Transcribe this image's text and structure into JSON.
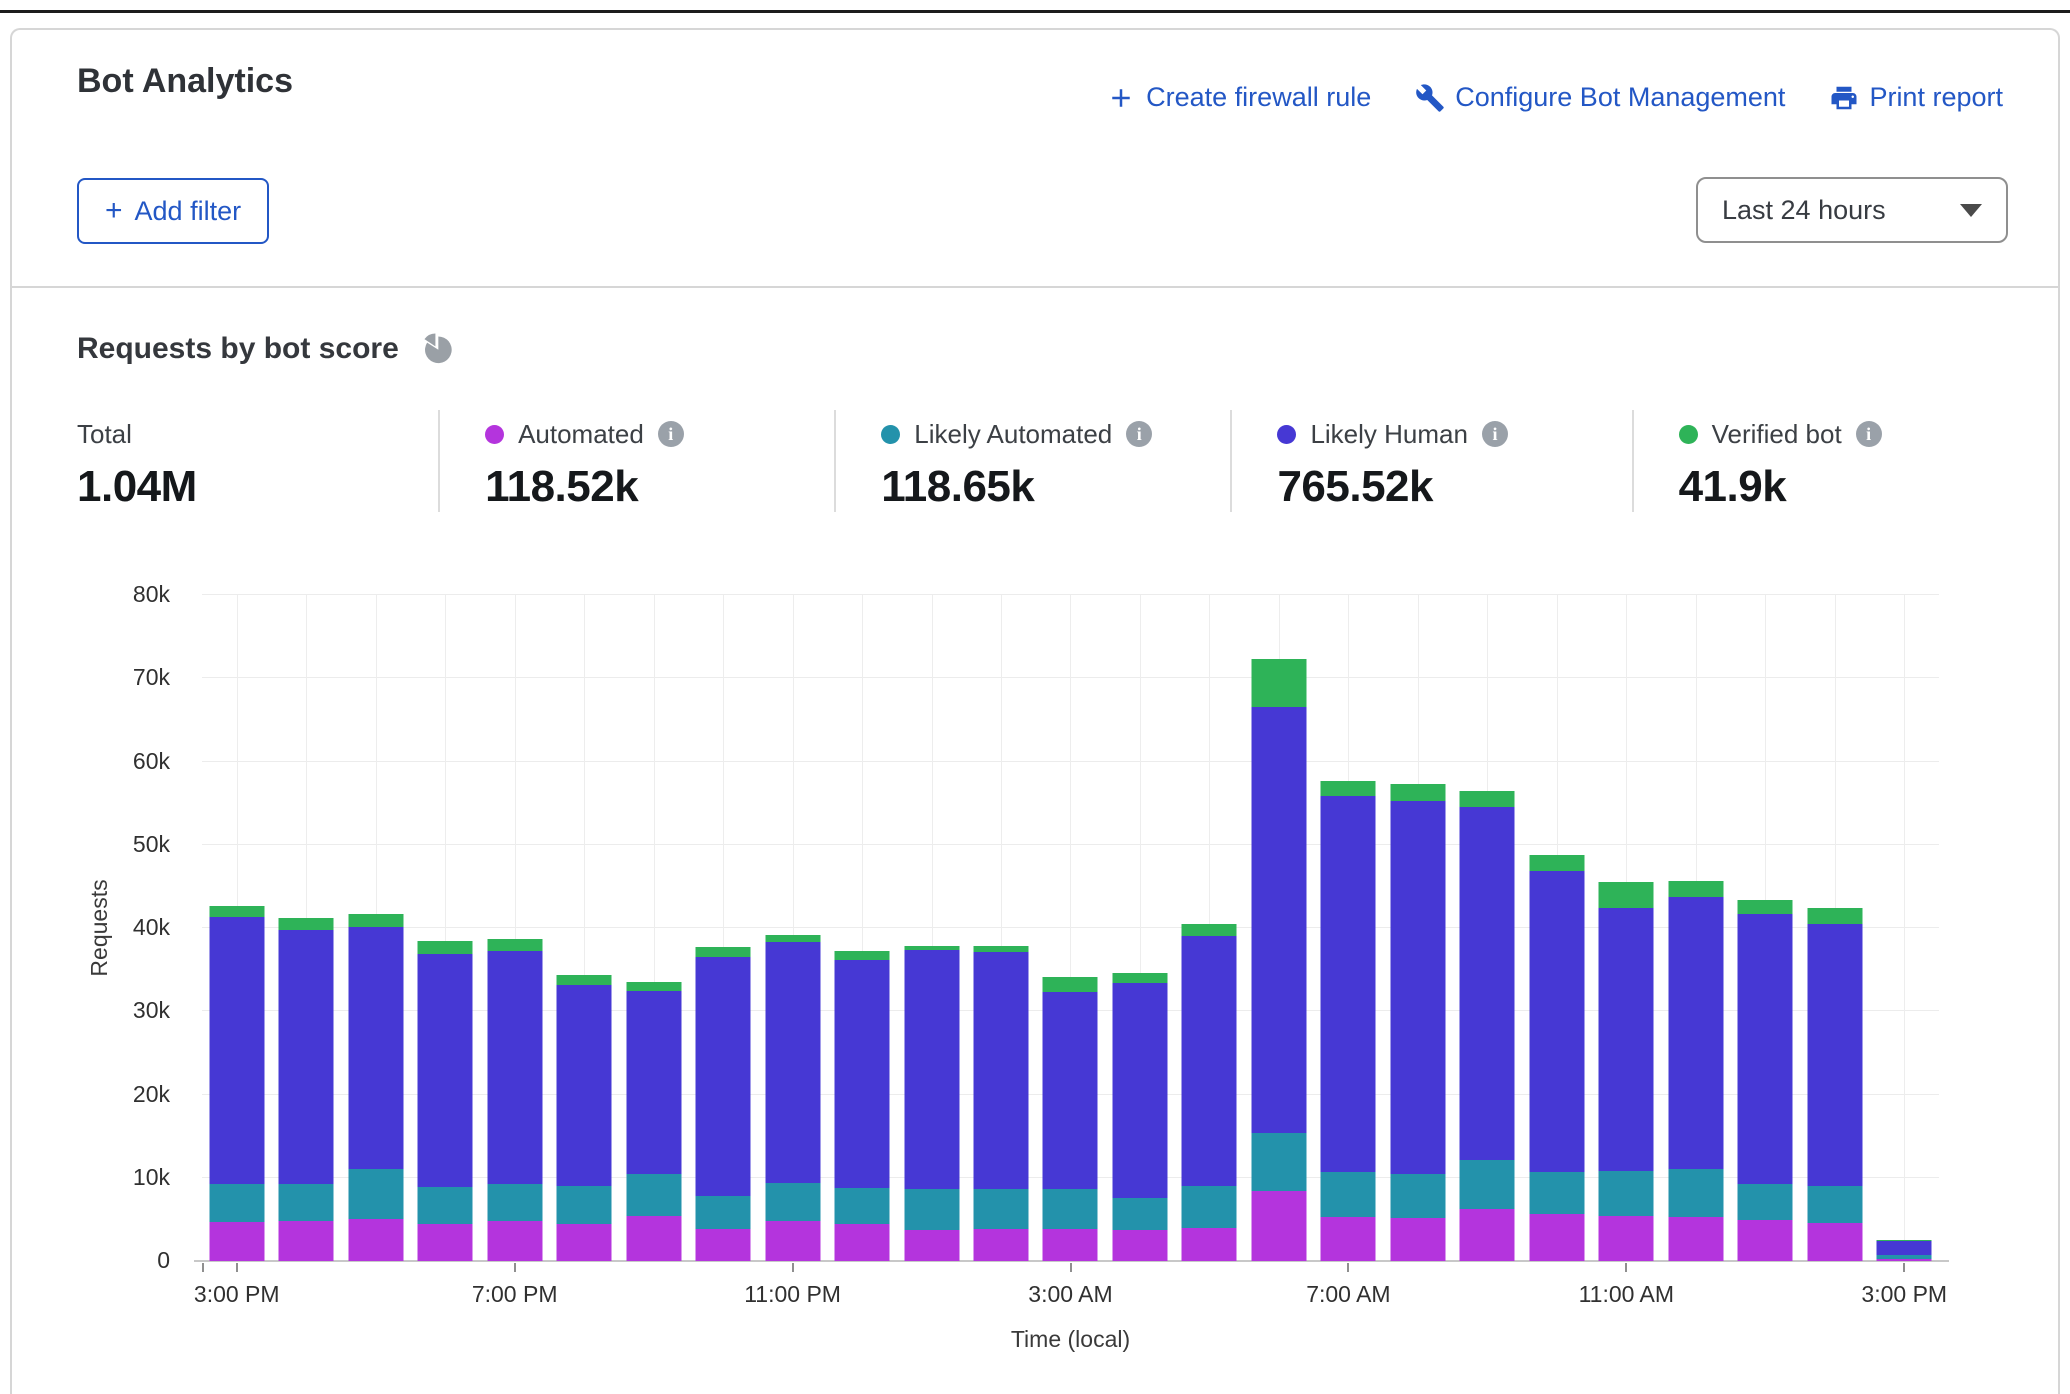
{
  "header": {
    "title": "Bot Analytics",
    "actions": [
      {
        "label": "Create firewall rule",
        "icon": "plus-icon"
      },
      {
        "label": "Configure Bot Management",
        "icon": "wrench-icon"
      },
      {
        "label": "Print report",
        "icon": "printer-icon"
      }
    ],
    "add_filter_label": "Add filter",
    "time_range": {
      "selected": "Last 24 hours"
    }
  },
  "section": {
    "title": "Requests by bot score",
    "stats": {
      "items": [
        {
          "label": "Total",
          "value": "1.04M"
        },
        {
          "label": "Automated",
          "value": "118.52k",
          "color": "#b434dd"
        },
        {
          "label": "Likely Automated",
          "value": "118.65k",
          "color": "#2392ab"
        },
        {
          "label": "Likely Human",
          "value": "765.52k",
          "color": "#4638d4"
        },
        {
          "label": "Verified bot",
          "value": "41.9k",
          "color": "#2eb358"
        }
      ]
    }
  },
  "chart_data": {
    "type": "bar",
    "stacked": true,
    "title": "Requests by bot score",
    "xlabel": "Time (local)",
    "ylabel": "Requests",
    "ylim": [
      0,
      80000
    ],
    "grid": true,
    "y_tick_values": [
      0,
      10000,
      20000,
      30000,
      40000,
      50000,
      60000,
      70000,
      80000
    ],
    "y_tick_labels": [
      "0",
      "10k",
      "20k",
      "30k",
      "40k",
      "50k",
      "60k",
      "70k",
      "80k"
    ],
    "x_tick_labels": [
      "3:00 PM",
      "7:00 PM",
      "11:00 PM",
      "3:00 AM",
      "7:00 AM",
      "11:00 AM",
      "3:00 PM"
    ],
    "x_tick_every": 4,
    "categories": [
      "3:00 PM",
      "4:00 PM",
      "5:00 PM",
      "6:00 PM",
      "7:00 PM",
      "8:00 PM",
      "9:00 PM",
      "10:00 PM",
      "11:00 PM",
      "12:00 AM",
      "1:00 AM",
      "2:00 AM",
      "3:00 AM",
      "4:00 AM",
      "5:00 AM",
      "6:00 AM",
      "7:00 AM",
      "8:00 AM",
      "9:00 AM",
      "10:00 AM",
      "11:00 AM",
      "12:00 PM",
      "1:00 PM",
      "2:00 PM",
      "3:00 PM"
    ],
    "series": [
      {
        "name": "Automated",
        "color": "#b434dd",
        "values": [
          4700,
          4800,
          5100,
          4500,
          4800,
          4500,
          5400,
          3800,
          4800,
          4400,
          3700,
          3900,
          3900,
          3700,
          4000,
          8400,
          5300,
          5200,
          6300,
          5600,
          5400,
          5300,
          4900,
          4600,
          300
        ]
      },
      {
        "name": "Likely Automated",
        "color": "#2392ab",
        "values": [
          4500,
          4500,
          5900,
          4400,
          4500,
          4500,
          5100,
          4000,
          4600,
          4400,
          5000,
          4700,
          4700,
          3900,
          5000,
          7000,
          5400,
          5300,
          5800,
          5100,
          5400,
          5700,
          4400,
          4400,
          400
        ]
      },
      {
        "name": "Likely Human",
        "color": "#4638d4",
        "values": [
          32100,
          30500,
          29100,
          28000,
          27900,
          24200,
          21900,
          28700,
          28900,
          27300,
          28600,
          28500,
          23700,
          25800,
          30100,
          51100,
          45200,
          44700,
          42400,
          36200,
          31600,
          32700,
          32400,
          31500,
          1700
        ]
      },
      {
        "name": "Verified bot",
        "color": "#2eb358",
        "values": [
          1300,
          1400,
          1600,
          1500,
          1500,
          1100,
          1100,
          1200,
          900,
          1100,
          600,
          800,
          1800,
          1200,
          1400,
          5800,
          1800,
          2100,
          2000,
          1900,
          3100,
          1900,
          1700,
          1900,
          100
        ]
      }
    ],
    "legend_position": "top"
  }
}
